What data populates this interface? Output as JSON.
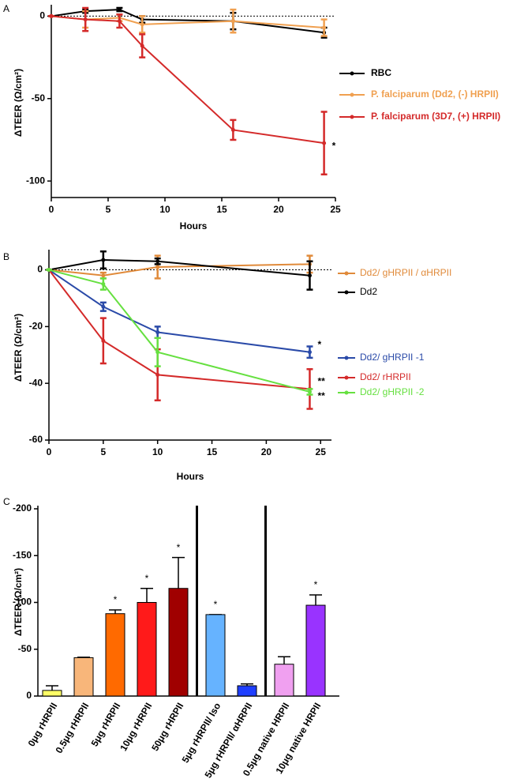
{
  "chart_data": [
    {
      "type": "line",
      "panel": "A",
      "x_label": "Hours",
      "y_label": "ΔTEER (Ω/cm²)",
      "xlim": [
        0,
        25
      ],
      "xticks": [
        0,
        5,
        10,
        15,
        20,
        25
      ],
      "ylim": [
        -110,
        5
      ],
      "yticks": [
        -100,
        -50,
        0
      ],
      "zero_line": true,
      "series": [
        {
          "name": "RBC",
          "color": "#000000",
          "x": [
            0,
            3,
            6,
            8,
            16,
            24
          ],
          "values": [
            0,
            3,
            4,
            -2,
            -3,
            -10
          ],
          "errors": [
            0,
            1,
            1,
            2,
            5,
            3
          ]
        },
        {
          "name": "P. falciparum (Dd2, (-) HRPII)",
          "color": "#f0a050",
          "x": [
            0,
            3,
            6,
            8,
            16,
            24
          ],
          "values": [
            0,
            -2,
            -1,
            -5,
            -3,
            -7
          ],
          "errors": [
            0,
            5,
            2,
            5,
            7,
            5
          ]
        },
        {
          "name": "P. falciparum (3D7, (+) HRPII)",
          "color": "#d42a2a",
          "x": [
            0,
            3,
            6,
            8,
            16,
            24
          ],
          "values": [
            0,
            -2,
            -3,
            -18,
            -69,
            -77
          ],
          "errors": [
            0,
            7,
            4,
            7,
            6,
            19
          ],
          "annotation": "*"
        }
      ]
    },
    {
      "type": "line",
      "panel": "B",
      "x_label": "Hours",
      "y_label": "ΔTEER (Ω/cm²)",
      "xlim": [
        0,
        26
      ],
      "xticks": [
        0,
        5,
        10,
        15,
        20,
        25
      ],
      "ylim": [
        -60,
        6
      ],
      "yticks": [
        -60,
        -40,
        -20,
        0
      ],
      "zero_line": true,
      "series": [
        {
          "name": "Dd2/ gHRPII / αHRPII",
          "color": "#e08a3a",
          "x": [
            0,
            5,
            10,
            24
          ],
          "values": [
            0,
            -2,
            1,
            2
          ],
          "errors": [
            0,
            1,
            4,
            3
          ]
        },
        {
          "name": "Dd2",
          "color": "#000000",
          "x": [
            0,
            5,
            10,
            24
          ],
          "values": [
            0,
            3.5,
            3,
            -2
          ],
          "errors": [
            0,
            3,
            1,
            5
          ]
        },
        {
          "name": "Dd2/ gHRPII -1",
          "color": "#2a4aa8",
          "x": [
            0,
            5,
            10,
            24
          ],
          "values": [
            0,
            -13,
            -22,
            -29
          ],
          "errors": [
            0,
            1.5,
            2,
            2
          ],
          "annotation": "*"
        },
        {
          "name": "Dd2/ rHRPII",
          "color": "#d42a2a",
          "x": [
            0,
            5,
            10,
            24
          ],
          "values": [
            0,
            -25,
            -37,
            -42
          ],
          "errors": [
            0,
            8,
            9,
            7
          ],
          "annotation": "**"
        },
        {
          "name": "Dd2/ gHRPII -2",
          "color": "#66e040",
          "x": [
            0,
            5,
            10,
            24
          ],
          "values": [
            0,
            -5,
            -29,
            -43
          ],
          "errors": [
            0,
            2,
            5,
            1
          ],
          "annotation": "**"
        }
      ]
    },
    {
      "type": "bar",
      "panel": "C",
      "y_label": "ΔTEER (Ω/cm²)",
      "ylim": [
        0,
        -200
      ],
      "yticks": [
        -200,
        -150,
        -100,
        -50,
        0
      ],
      "categories": [
        "0μg rHRPII",
        "0.5μg rHRPII",
        "5μg rHRPII",
        "10μg rHRPII",
        "50μg rHRPII",
        "5μg rHRPII/ Iso",
        "5μg rHRPII/ αHRPII",
        "0.5μg native HRPII",
        "10μg native HRPII"
      ],
      "values": [
        -6,
        -41,
        -88,
        -100,
        -115,
        -87,
        -11,
        -34,
        -97
      ],
      "errors": [
        5,
        0.5,
        4,
        15,
        33,
        0,
        2,
        8,
        11
      ],
      "colors": [
        "#ffff66",
        "#f8b67a",
        "#ff6a00",
        "#ff1a1a",
        "#a00000",
        "#66b3ff",
        "#1f3fff",
        "#f0a0f0",
        "#9933ff"
      ],
      "markers": [
        null,
        null,
        "*",
        "*",
        "*",
        "*",
        null,
        null,
        "*"
      ],
      "separators_before": [
        5,
        7
      ]
    }
  ]
}
